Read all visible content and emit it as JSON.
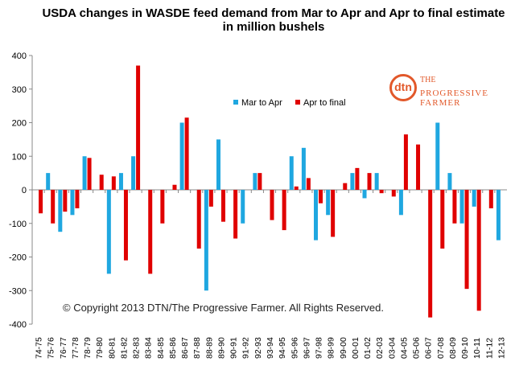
{
  "title_line1": "USDA  changes in WASDE feed demand from Mar to Apr and Apr to final estimate",
  "title_line2": "in million bushels",
  "logo": {
    "mark": "dtn",
    "line1": "THE",
    "line2": "PROGRESSIVE",
    "line3": "FARMER"
  },
  "copyright": "© Copyright 2013 DTN/The Progressive Farmer. All Rights Reserved.",
  "colors": {
    "mar_to_apr": "#1fa7e0",
    "apr_to_final": "#e00000"
  },
  "chart_data": {
    "type": "bar",
    "ylim": [
      -400,
      400
    ],
    "ytick_step": 100,
    "grid": false,
    "legend_position": "top-center",
    "categories": [
      "74-75",
      "75-76",
      "76-77",
      "77-78",
      "78-79",
      "79-80",
      "80-81",
      "81-82",
      "82-83",
      "83-84",
      "84-85",
      "85-86",
      "86-87",
      "87-88",
      "88-89",
      "89-90",
      "90-91",
      "91-92",
      "92-93",
      "93-94",
      "94-95",
      "95-96",
      "96-97",
      "97-98",
      "98-99",
      "99-00",
      "00-01",
      "01-02",
      "02-03",
      "03-04",
      "04-05",
      "05-06",
      "06-07",
      "07-08",
      "08-09",
      "09-10",
      "10-11",
      "11-12",
      "12-13"
    ],
    "series": [
      {
        "name": "Mar to Apr",
        "values": [
          0,
          50,
          -125,
          -75,
          100,
          0,
          -250,
          50,
          100,
          0,
          0,
          0,
          200,
          0,
          -300,
          150,
          0,
          -100,
          50,
          0,
          0,
          100,
          125,
          -150,
          -75,
          0,
          50,
          -25,
          50,
          0,
          -75,
          0,
          0,
          200,
          50,
          -100,
          -50,
          0,
          -150
        ]
      },
      {
        "name": "Apr to final",
        "values": [
          -70,
          -100,
          -65,
          -55,
          95,
          45,
          40,
          -210,
          370,
          -250,
          -100,
          15,
          215,
          -175,
          -50,
          -95,
          -145,
          0,
          50,
          -90,
          -120,
          10,
          35,
          -40,
          -140,
          20,
          65,
          50,
          -10,
          -20,
          165,
          135,
          -380,
          -175,
          -100,
          -295,
          -360,
          -55,
          0
        ]
      }
    ]
  }
}
